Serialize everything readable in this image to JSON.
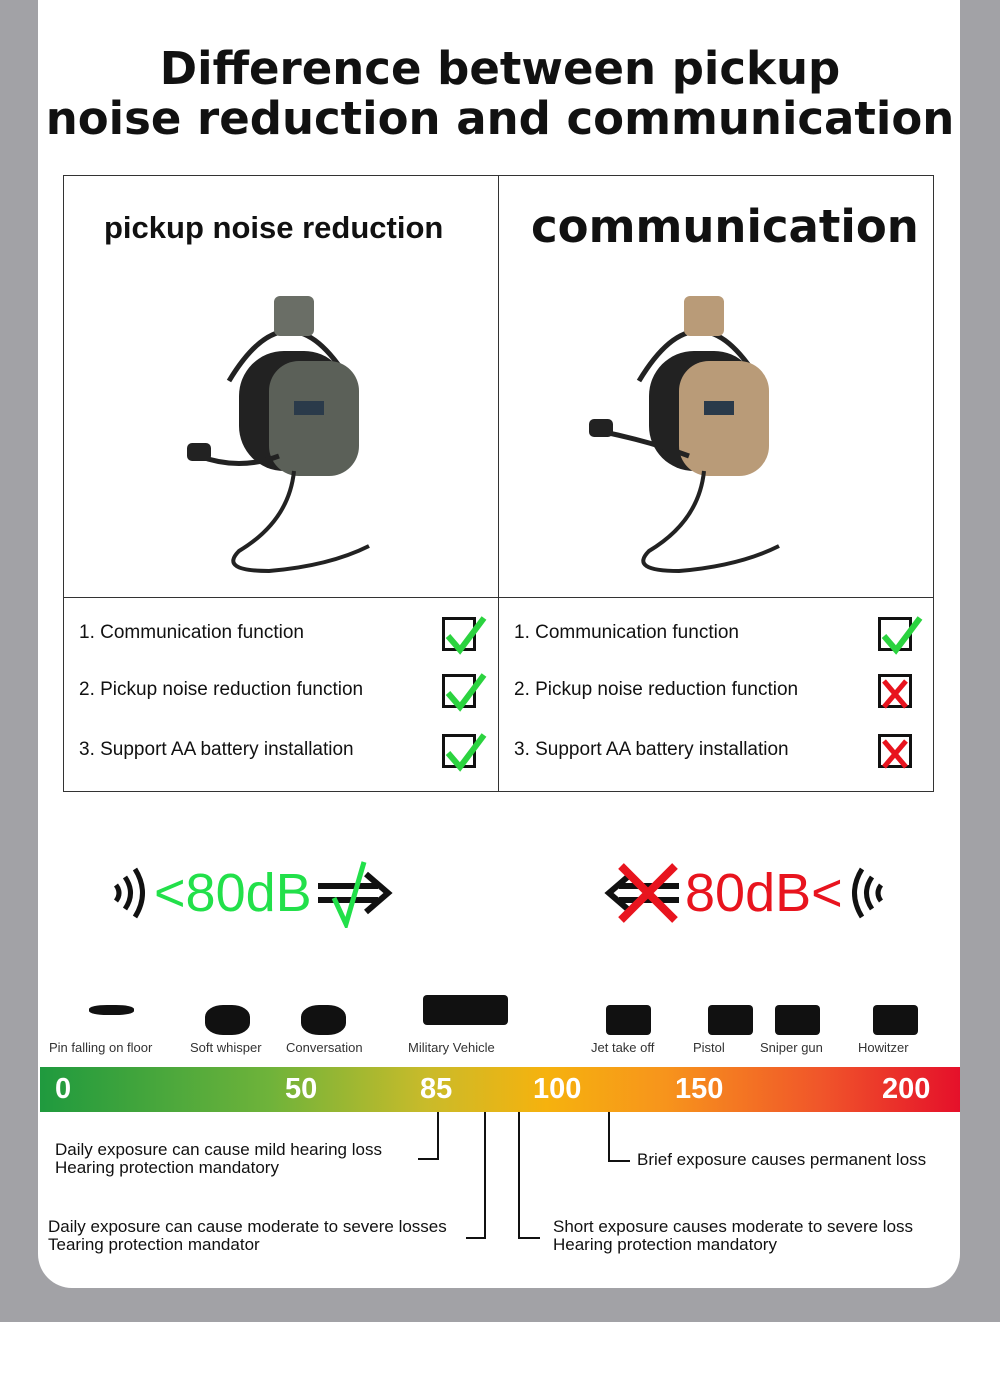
{
  "title_line1": "Difference between pickup",
  "title_line2": "noise reduction and communication",
  "columns": [
    {
      "heading": "pickup noise reduction",
      "headset_color": "#5b6058",
      "features": [
        {
          "label": "1. Communication function",
          "supported": true
        },
        {
          "label": "2. Pickup noise reduction function",
          "supported": true
        },
        {
          "label": "3. Support AA battery installation",
          "supported": true
        }
      ]
    },
    {
      "heading": "communication",
      "headset_color": "#b99b78",
      "features": [
        {
          "label": "1. Communication function",
          "supported": true
        },
        {
          "label": "2. Pickup noise reduction function",
          "supported": false
        },
        {
          "label": "3. Support AA battery installation",
          "supported": false
        }
      ]
    }
  ],
  "threshold_left": {
    "text": "<80dB",
    "color": "#22e04a"
  },
  "threshold_right": {
    "text": "80dB<",
    "color": "#e8141e"
  },
  "scale": {
    "sources": [
      "Pin falling on floor",
      "Soft whisper",
      "Conversation",
      "Military Vehicle",
      "Jet take off",
      "Pistol",
      "Sniper gun",
      "Howitzer"
    ],
    "ticks": [
      "0",
      "50",
      "85",
      "100",
      "150",
      "200"
    ],
    "notes": [
      {
        "line1": "Daily exposure can cause mild hearing loss",
        "line2": "Hearing protection mandatory"
      },
      {
        "line1": "Daily exposure can cause moderate to severe losses",
        "line2": "Tearing protection mandator"
      },
      {
        "line1": "Short exposure causes moderate to severe loss",
        "line2": "Hearing protection mandatory"
      },
      {
        "line1": "Brief exposure causes permanent loss"
      }
    ]
  }
}
